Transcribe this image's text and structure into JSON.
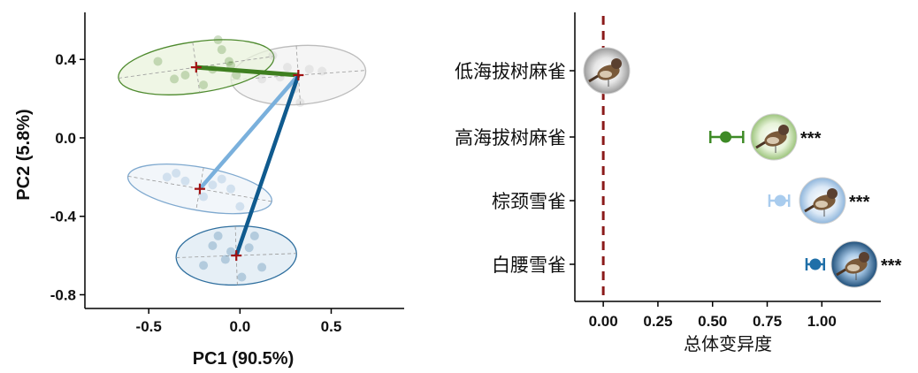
{
  "chart_data": [
    {
      "type": "scatter",
      "xlabel": "PC1 (90.5%)",
      "ylabel": "PC2 (5.8%)",
      "xlim": [
        -0.85,
        0.9
      ],
      "ylim": [
        -0.87,
        0.64
      ],
      "xticks": [
        "-0.5",
        "0.0",
        "0.5"
      ],
      "xtick_values": [
        -0.5,
        0.0,
        0.5
      ],
      "yticks": [
        "0.4",
        "0.0",
        "-0.4",
        "-0.8"
      ],
      "ytick_values": [
        0.4,
        0.0,
        -0.4,
        -0.8
      ],
      "groups": [
        {
          "id": "lowland",
          "color": "#bcbcbc",
          "fill": "#f2f2f2",
          "centroid": [
            0.32,
            0.32
          ],
          "radii": [
            0.37,
            0.15
          ],
          "angle": -4,
          "points": [
            [
              0.18,
              0.42
            ],
            [
              0.26,
              0.36
            ],
            [
              0.38,
              0.35
            ],
            [
              0.12,
              0.3
            ],
            [
              0.45,
              0.34
            ],
            [
              0.33,
              0.18
            ],
            [
              0.3,
              0.25
            ],
            [
              0.22,
              0.31
            ]
          ]
        },
        {
          "id": "highland",
          "color": "#4e8a2e",
          "fill": "#eaf3dc",
          "centroid": [
            -0.24,
            0.36
          ],
          "radii": [
            0.43,
            0.13
          ],
          "angle": -8,
          "points": [
            [
              -0.1,
              0.45
            ],
            [
              -0.06,
              0.39
            ],
            [
              -0.15,
              0.35
            ],
            [
              -0.3,
              0.32
            ],
            [
              -0.45,
              0.39
            ],
            [
              -0.36,
              0.3
            ],
            [
              -0.2,
              0.27
            ],
            [
              -0.05,
              0.37
            ],
            [
              -0.02,
              0.32
            ],
            [
              -0.12,
              0.5
            ]
          ]
        },
        {
          "id": "rufous",
          "color": "#7fa9cf",
          "fill": "#eef3f8",
          "centroid": [
            -0.22,
            -0.26
          ],
          "radii": [
            0.4,
            0.11
          ],
          "angle": 10,
          "points": [
            [
              -0.35,
              -0.18
            ],
            [
              -0.3,
              -0.22
            ],
            [
              -0.15,
              -0.24
            ],
            [
              -0.05,
              -0.26
            ],
            [
              -0.2,
              -0.3
            ],
            [
              0.0,
              -0.35
            ],
            [
              -0.4,
              -0.2
            ],
            [
              -0.1,
              -0.21
            ]
          ]
        },
        {
          "id": "whiterump",
          "color": "#2e6e9e",
          "fill": "#dde9f3",
          "centroid": [
            -0.02,
            -0.6
          ],
          "radii": [
            0.33,
            0.15
          ],
          "angle": -2,
          "points": [
            [
              -0.15,
              -0.55
            ],
            [
              -0.08,
              -0.62
            ],
            [
              0.05,
              -0.56
            ],
            [
              0.12,
              -0.66
            ],
            [
              -0.2,
              -0.65
            ],
            [
              -0.12,
              -0.5
            ],
            [
              0.08,
              -0.5
            ],
            [
              0.01,
              -0.71
            ],
            [
              -0.05,
              -0.58
            ]
          ]
        }
      ],
      "links": [
        {
          "from": "highland",
          "to": "lowland",
          "color": "#3f7f20",
          "width": 5
        },
        {
          "from": "rufous",
          "to": "lowland",
          "color": "#7ab0dc",
          "width": 4.5
        },
        {
          "from": "whiterump",
          "to": "lowland",
          "color": "#0f5a8e",
          "width": 4.5
        }
      ],
      "centroid_marker_color": "#a11212"
    },
    {
      "type": "dot_errorbar",
      "xlabel": "总体变异度",
      "xlim": [
        -0.13,
        1.27
      ],
      "xticks": [
        "0.00",
        "0.25",
        "0.50",
        "0.75",
        "1.00"
      ],
      "xtick_values": [
        0.0,
        0.25,
        0.5,
        0.75,
        1.0
      ],
      "reference_line": {
        "x": 0.0,
        "color": "#8b1a1a",
        "style": "dashed"
      },
      "categories": [
        "低海拔树麻雀",
        "高海拔树麻雀",
        "棕颈雪雀",
        "白腰雪雀"
      ],
      "values": [
        null,
        0.56,
        0.81,
        0.97
      ],
      "ci": [
        null,
        [
          0.49,
          0.64
        ],
        [
          0.76,
          0.85
        ],
        [
          0.93,
          1.01
        ]
      ],
      "colors": [
        "#888888",
        "#3e8a26",
        "#a9ccee",
        "#1f6fa8"
      ],
      "badge_fill": [
        "#cfcfcf",
        "#d8ecc4",
        "#d4e6f7",
        "#8eb8dc"
      ],
      "significance": [
        "",
        "***",
        "***",
        "***"
      ]
    }
  ]
}
